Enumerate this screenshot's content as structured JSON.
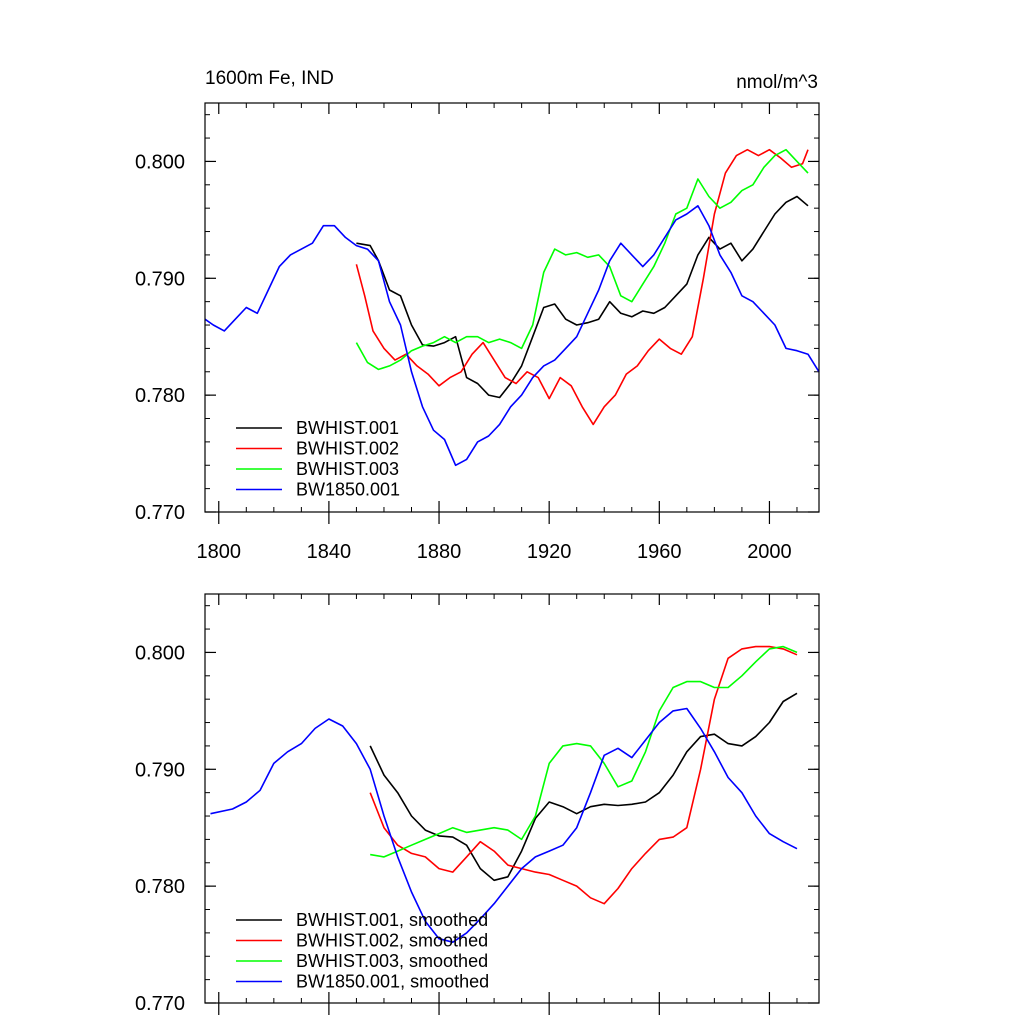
{
  "chart_data": [
    {
      "type": "line",
      "title": "1600m Fe, IND",
      "units": "nmol/m^3",
      "xlim": [
        1795,
        2018
      ],
      "ylim": [
        0.77,
        0.805
      ],
      "xticks": [
        1800,
        1840,
        1880,
        1920,
        1960,
        2000
      ],
      "yticks": [
        0.77,
        0.78,
        0.79,
        0.8
      ],
      "ytick_labels": [
        "0.770",
        "0.780",
        "0.790",
        "0.800"
      ],
      "legend_position": "lower-left",
      "series": [
        {
          "name": "BWHIST.001",
          "color": "#000000",
          "x": [
            1850,
            1855,
            1858,
            1862,
            1866,
            1870,
            1874,
            1878,
            1882,
            1886,
            1890,
            1894,
            1898,
            1902,
            1906,
            1910,
            1914,
            1918,
            1922,
            1926,
            1930,
            1934,
            1938,
            1942,
            1946,
            1950,
            1954,
            1958,
            1962,
            1966,
            1970,
            1974,
            1978,
            1982,
            1986,
            1990,
            1994,
            1998,
            2002,
            2006,
            2010,
            2014
          ],
          "y": [
            0.793,
            0.7928,
            0.7915,
            0.789,
            0.7885,
            0.786,
            0.7843,
            0.7842,
            0.7845,
            0.785,
            0.7815,
            0.781,
            0.78,
            0.7798,
            0.781,
            0.7825,
            0.785,
            0.7875,
            0.7878,
            0.7865,
            0.786,
            0.7862,
            0.7865,
            0.788,
            0.787,
            0.7867,
            0.7872,
            0.787,
            0.7875,
            0.7885,
            0.7895,
            0.792,
            0.7935,
            0.7925,
            0.793,
            0.7915,
            0.7925,
            0.794,
            0.7955,
            0.7965,
            0.797,
            0.7962
          ]
        },
        {
          "name": "BWHIST.002",
          "color": "#ff0000",
          "x": [
            1850,
            1853,
            1856,
            1860,
            1864,
            1868,
            1872,
            1876,
            1880,
            1884,
            1888,
            1892,
            1896,
            1900,
            1904,
            1908,
            1912,
            1916,
            1920,
            1924,
            1928,
            1932,
            1936,
            1940,
            1944,
            1948,
            1952,
            1956,
            1960,
            1964,
            1968,
            1972,
            1976,
            1980,
            1984,
            1988,
            1992,
            1996,
            2000,
            2004,
            2008,
            2012,
            2014
          ],
          "y": [
            0.7912,
            0.7885,
            0.7855,
            0.784,
            0.783,
            0.7835,
            0.7825,
            0.7818,
            0.7808,
            0.7815,
            0.782,
            0.7835,
            0.7845,
            0.783,
            0.7815,
            0.781,
            0.782,
            0.7815,
            0.7797,
            0.7815,
            0.7808,
            0.779,
            0.7775,
            0.779,
            0.78,
            0.7818,
            0.7825,
            0.7838,
            0.7848,
            0.784,
            0.7835,
            0.785,
            0.79,
            0.7955,
            0.799,
            0.8005,
            0.801,
            0.8005,
            0.801,
            0.8003,
            0.7995,
            0.7998,
            0.801
          ]
        },
        {
          "name": "BWHIST.003",
          "color": "#00ff00",
          "x": [
            1850,
            1854,
            1858,
            1862,
            1866,
            1870,
            1874,
            1878,
            1882,
            1886,
            1890,
            1894,
            1898,
            1902,
            1906,
            1910,
            1914,
            1918,
            1922,
            1926,
            1930,
            1934,
            1938,
            1942,
            1946,
            1950,
            1954,
            1958,
            1962,
            1966,
            1970,
            1974,
            1978,
            1982,
            1986,
            1990,
            1994,
            1998,
            2002,
            2006,
            2010,
            2014
          ],
          "y": [
            0.7845,
            0.7828,
            0.7822,
            0.7825,
            0.783,
            0.7838,
            0.7842,
            0.7845,
            0.785,
            0.7845,
            0.785,
            0.785,
            0.7845,
            0.7848,
            0.7845,
            0.784,
            0.786,
            0.7905,
            0.7925,
            0.792,
            0.7922,
            0.7918,
            0.792,
            0.791,
            0.7885,
            0.788,
            0.7895,
            0.791,
            0.793,
            0.7955,
            0.796,
            0.7985,
            0.797,
            0.796,
            0.7965,
            0.7975,
            0.798,
            0.7995,
            0.8005,
            0.801,
            0.8,
            0.799
          ]
        },
        {
          "name": "BW1850.001",
          "color": "#0000ff",
          "x": [
            1795,
            1798,
            1802,
            1806,
            1810,
            1814,
            1818,
            1822,
            1826,
            1830,
            1834,
            1838,
            1842,
            1846,
            1850,
            1854,
            1858,
            1862,
            1866,
            1870,
            1874,
            1878,
            1882,
            1886,
            1890,
            1894,
            1898,
            1902,
            1906,
            1910,
            1914,
            1918,
            1922,
            1926,
            1930,
            1934,
            1938,
            1942,
            1946,
            1950,
            1954,
            1958,
            1962,
            1966,
            1970,
            1974,
            1978,
            1982,
            1986,
            1990,
            1994,
            1998,
            2002,
            2006,
            2010,
            2014,
            2018
          ],
          "y": [
            0.7865,
            0.786,
            0.7855,
            0.7865,
            0.7875,
            0.787,
            0.789,
            0.791,
            0.792,
            0.7925,
            0.793,
            0.7945,
            0.7945,
            0.7935,
            0.7928,
            0.7925,
            0.7915,
            0.788,
            0.786,
            0.782,
            0.779,
            0.777,
            0.7762,
            0.774,
            0.7745,
            0.776,
            0.7765,
            0.7775,
            0.779,
            0.78,
            0.7815,
            0.7825,
            0.783,
            0.784,
            0.785,
            0.787,
            0.789,
            0.7915,
            0.793,
            0.792,
            0.791,
            0.792,
            0.7935,
            0.795,
            0.7955,
            0.7962,
            0.7945,
            0.792,
            0.7905,
            0.7885,
            0.788,
            0.787,
            0.786,
            0.784,
            0.7838,
            0.7835,
            0.782
          ]
        }
      ]
    },
    {
      "type": "line",
      "title": "",
      "units": "",
      "xlim": [
        1795,
        2018
      ],
      "ylim": [
        0.77,
        0.805
      ],
      "xticks": [
        1800,
        1840,
        1880,
        1920,
        1960,
        2000
      ],
      "yticks": [
        0.77,
        0.78,
        0.79,
        0.8
      ],
      "ytick_labels": [
        "0.770",
        "0.780",
        "0.790",
        "0.800"
      ],
      "legend_position": "lower-left",
      "series": [
        {
          "name": "BWHIST.001, smoothed",
          "color": "#000000",
          "x": [
            1855,
            1860,
            1865,
            1870,
            1875,
            1880,
            1885,
            1890,
            1895,
            1900,
            1905,
            1910,
            1915,
            1920,
            1925,
            1930,
            1935,
            1940,
            1945,
            1950,
            1955,
            1960,
            1965,
            1970,
            1975,
            1980,
            1985,
            1990,
            1995,
            2000,
            2005,
            2010
          ],
          "y": [
            0.792,
            0.7895,
            0.788,
            0.786,
            0.7848,
            0.7843,
            0.7842,
            0.7835,
            0.7815,
            0.7805,
            0.7808,
            0.783,
            0.7858,
            0.7872,
            0.7868,
            0.7862,
            0.7868,
            0.787,
            0.7869,
            0.787,
            0.7872,
            0.788,
            0.7895,
            0.7915,
            0.7928,
            0.793,
            0.7922,
            0.792,
            0.7928,
            0.794,
            0.7958,
            0.7965
          ]
        },
        {
          "name": "BWHIST.002, smoothed",
          "color": "#ff0000",
          "x": [
            1855,
            1860,
            1865,
            1870,
            1875,
            1880,
            1885,
            1890,
            1895,
            1900,
            1905,
            1910,
            1915,
            1920,
            1925,
            1930,
            1935,
            1940,
            1945,
            1950,
            1955,
            1960,
            1965,
            1970,
            1975,
            1980,
            1985,
            1990,
            1995,
            2000,
            2005,
            2010
          ],
          "y": [
            0.788,
            0.785,
            0.7835,
            0.7828,
            0.7825,
            0.7815,
            0.7812,
            0.7825,
            0.7838,
            0.783,
            0.7818,
            0.7815,
            0.7812,
            0.781,
            0.7805,
            0.78,
            0.779,
            0.7785,
            0.7798,
            0.7815,
            0.7828,
            0.784,
            0.7842,
            0.785,
            0.79,
            0.796,
            0.7995,
            0.8003,
            0.8005,
            0.8005,
            0.8003,
            0.7998
          ]
        },
        {
          "name": "BWHIST.003, smoothed",
          "color": "#00ff00",
          "x": [
            1855,
            1860,
            1865,
            1870,
            1875,
            1880,
            1885,
            1890,
            1895,
            1900,
            1905,
            1910,
            1915,
            1920,
            1925,
            1930,
            1935,
            1940,
            1945,
            1950,
            1955,
            1960,
            1965,
            1970,
            1975,
            1980,
            1985,
            1990,
            1995,
            2000,
            2005,
            2010
          ],
          "y": [
            0.7827,
            0.7825,
            0.783,
            0.7835,
            0.784,
            0.7845,
            0.785,
            0.7846,
            0.7848,
            0.785,
            0.7848,
            0.784,
            0.786,
            0.7905,
            0.792,
            0.7922,
            0.792,
            0.7905,
            0.7885,
            0.789,
            0.7915,
            0.795,
            0.797,
            0.7975,
            0.7975,
            0.797,
            0.797,
            0.798,
            0.7992,
            0.8003,
            0.8005,
            0.8
          ]
        },
        {
          "name": "BW1850.001, smoothed",
          "color": "#0000ff",
          "x": [
            1797,
            1805,
            1810,
            1815,
            1820,
            1825,
            1830,
            1835,
            1840,
            1845,
            1850,
            1855,
            1860,
            1865,
            1870,
            1875,
            1880,
            1885,
            1890,
            1895,
            1900,
            1905,
            1910,
            1915,
            1920,
            1925,
            1930,
            1935,
            1940,
            1945,
            1950,
            1955,
            1960,
            1965,
            1970,
            1975,
            1980,
            1985,
            1990,
            1995,
            2000,
            2005,
            2010
          ],
          "y": [
            0.7862,
            0.7866,
            0.7872,
            0.7882,
            0.7905,
            0.7915,
            0.7922,
            0.7935,
            0.7943,
            0.7937,
            0.7922,
            0.79,
            0.786,
            0.7825,
            0.7795,
            0.777,
            0.7755,
            0.7752,
            0.776,
            0.7772,
            0.7785,
            0.78,
            0.7815,
            0.7825,
            0.783,
            0.7835,
            0.785,
            0.788,
            0.7912,
            0.7918,
            0.791,
            0.7925,
            0.794,
            0.795,
            0.7952,
            0.7935,
            0.7915,
            0.7893,
            0.788,
            0.786,
            0.7845,
            0.7838,
            0.7832
          ]
        }
      ]
    }
  ]
}
